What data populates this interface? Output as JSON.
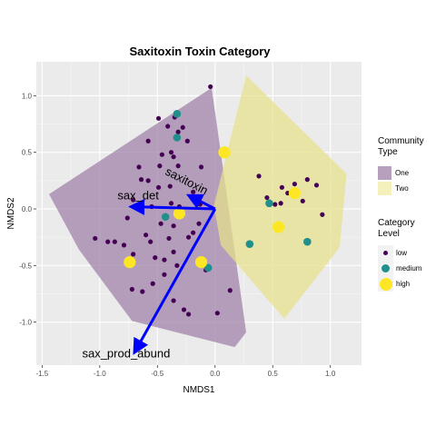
{
  "chart_data": {
    "type": "scatter",
    "title": "Saxitoxin Toxin Category",
    "xlabel": "NMDS1",
    "ylabel": "NMDS2",
    "xlim": [
      -1.55,
      1.27
    ],
    "ylim": [
      -1.38,
      1.3
    ],
    "xticks": [
      -1.5,
      -1.0,
      -0.5,
      0.0,
      0.5,
      1.0
    ],
    "xtick_labels": [
      "-1.5",
      "-1.0",
      "-0.5",
      "0.0",
      "0.5",
      "1.0"
    ],
    "yticks": [
      -1.0,
      -0.5,
      0.0,
      0.5,
      1.0
    ],
    "ytick_labels": [
      "-1.0",
      "-0.5",
      "0.0",
      "0.5",
      "1.0"
    ],
    "grid": true,
    "legend_position": "right",
    "hulls": [
      {
        "name": "One",
        "color": "#9c7ea6",
        "points": [
          [
            -1.44,
            0.13
          ],
          [
            -0.03,
            1.07
          ],
          [
            0.27,
            -1.09
          ],
          [
            0.17,
            -1.22
          ],
          [
            -0.72,
            -0.99
          ],
          [
            -1.18,
            -0.36
          ]
        ]
      },
      {
        "name": "Two",
        "color": "#e6e08a",
        "points": [
          [
            0.27,
            1.18
          ],
          [
            1.14,
            0.31
          ],
          [
            1.08,
            -0.34
          ],
          [
            0.6,
            -0.97
          ],
          [
            0.05,
            -0.32
          ],
          [
            -0.01,
            0.03
          ]
        ]
      }
    ],
    "vectors": [
      {
        "label": "sax_det",
        "x": -0.73,
        "y": 0.02
      },
      {
        "label": "saxitoxin",
        "x": -0.23,
        "y": 0.12
      },
      {
        "label": "sax_prod_abund",
        "x": -0.7,
        "y": -1.27
      }
    ],
    "series": [
      {
        "name": "low",
        "color": "#440154",
        "points": [
          [
            -0.04,
            1.08
          ],
          [
            -0.49,
            0.8
          ],
          [
            -0.35,
            0.81
          ],
          [
            -0.41,
            0.73
          ],
          [
            -0.32,
            0.68
          ],
          [
            -0.28,
            0.72
          ],
          [
            -0.24,
            0.6
          ],
          [
            -0.58,
            0.6
          ],
          [
            -0.38,
            0.5
          ],
          [
            -0.46,
            0.48
          ],
          [
            -0.36,
            0.46
          ],
          [
            -0.66,
            0.37
          ],
          [
            -0.64,
            0.26
          ],
          [
            -0.58,
            0.25
          ],
          [
            -0.48,
            0.38
          ],
          [
            -0.32,
            0.38
          ],
          [
            -0.12,
            0.37
          ],
          [
            -0.49,
            0.19
          ],
          [
            -0.39,
            0.2
          ],
          [
            -0.19,
            0.15
          ],
          [
            -0.71,
            0.08
          ],
          [
            -0.55,
            0.02
          ],
          [
            -0.38,
            0.05
          ],
          [
            -0.31,
            0.02
          ],
          [
            -0.13,
            0.04
          ],
          [
            -0.76,
            -0.08
          ],
          [
            -0.47,
            -0.13
          ],
          [
            -0.36,
            -0.15
          ],
          [
            -0.14,
            -0.13
          ],
          [
            -1.04,
            -0.26
          ],
          [
            -0.93,
            -0.29
          ],
          [
            -0.87,
            -0.29
          ],
          [
            -0.79,
            -0.32
          ],
          [
            -0.6,
            -0.23
          ],
          [
            -0.56,
            -0.29
          ],
          [
            -0.4,
            -0.26
          ],
          [
            -0.23,
            -0.25
          ],
          [
            -0.19,
            -0.21
          ],
          [
            -0.71,
            -0.4
          ],
          [
            -0.52,
            -0.43
          ],
          [
            -0.44,
            -0.45
          ],
          [
            -0.36,
            -0.38
          ],
          [
            -0.44,
            -0.58
          ],
          [
            -0.33,
            -0.5
          ],
          [
            -0.1,
            -0.46
          ],
          [
            -0.08,
            -0.54
          ],
          [
            -0.54,
            -0.66
          ],
          [
            -0.72,
            -0.71
          ],
          [
            -0.63,
            -0.73
          ],
          [
            -0.36,
            -0.81
          ],
          [
            -0.27,
            -0.89
          ],
          [
            -0.23,
            -0.93
          ],
          [
            0.02,
            -0.92
          ],
          [
            0.13,
            -0.72
          ],
          [
            0.38,
            0.29
          ],
          [
            0.45,
            0.1
          ],
          [
            0.52,
            0.04
          ],
          [
            0.58,
            0.19
          ],
          [
            0.63,
            0.14
          ],
          [
            0.69,
            0.22
          ],
          [
            0.76,
            0.07
          ],
          [
            0.88,
            0.21
          ],
          [
            0.93,
            -0.05
          ],
          [
            0.8,
            0.26
          ],
          [
            0.57,
            0.05
          ]
        ]
      },
      {
        "name": "medium",
        "color": "#21908c",
        "points": [
          [
            -0.33,
            0.84
          ],
          [
            -0.33,
            0.63
          ],
          [
            -0.43,
            -0.07
          ],
          [
            -0.06,
            -0.52
          ],
          [
            0.3,
            -0.31
          ],
          [
            0.47,
            0.05
          ],
          [
            0.8,
            -0.29
          ]
        ]
      },
      {
        "name": "high",
        "color": "#fde725",
        "points": [
          [
            0.08,
            0.5
          ],
          [
            -0.31,
            -0.04
          ],
          [
            -0.74,
            -0.47
          ],
          [
            -0.12,
            -0.47
          ],
          [
            0.55,
            -0.16
          ],
          [
            0.69,
            0.14
          ]
        ]
      }
    ]
  },
  "legend": {
    "community_title": "Community\nType",
    "community_items": [
      {
        "label": "One",
        "color": "#b6a0bd"
      },
      {
        "label": "Two",
        "color": "#f5f1bc"
      }
    ],
    "category_title": "Category\nLevel",
    "category_items": [
      {
        "label": "low",
        "color": "#440154",
        "size": 5
      },
      {
        "label": "medium",
        "color": "#21908c",
        "size": 9
      },
      {
        "label": "high",
        "color": "#fde725",
        "size": 14
      }
    ]
  }
}
